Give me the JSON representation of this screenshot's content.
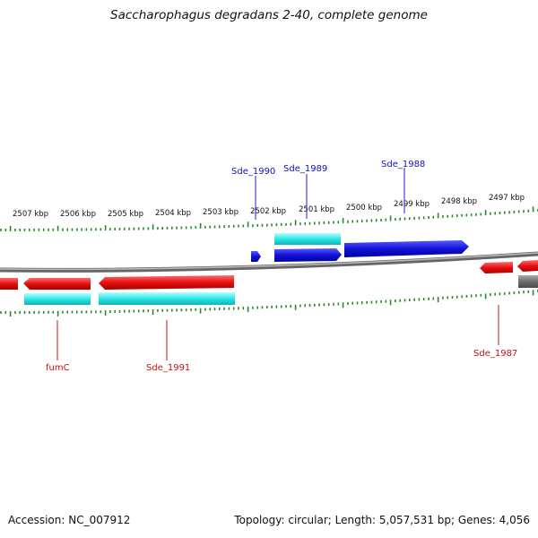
{
  "title": "Saccharophagus degradans 2-40, complete genome",
  "footer": {
    "accession": "Accession: NC_007912",
    "summary": "Topology: circular; Length: 5,057,531 bp; Genes: 4,056"
  },
  "scale_labels": [
    "2507 kbp",
    "2506 kbp",
    "2505 kbp",
    "2504 kbp",
    "2503 kbp",
    "2502 kbp",
    "2501 kbp",
    "2500 kbp",
    "2499 kbp",
    "2498 kbp",
    "2497 kbp"
  ],
  "gene_labels": {
    "forward": [
      "Sde_1990",
      "Sde_1989",
      "Sde_1988"
    ],
    "reverse": [
      "fumC",
      "Sde_1991",
      "Sde_1987"
    ]
  },
  "colors": {
    "forward_gene": "#1010d8",
    "reverse_gene": "#e01010",
    "cds": "#20e0e0",
    "backbone": "#777777",
    "ticks": "#2a8a2a",
    "other_gene": "#666666"
  }
}
